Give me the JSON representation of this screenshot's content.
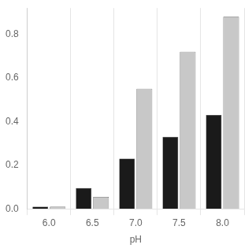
{
  "chart_data": {
    "type": "bar",
    "categories": [
      "6.0",
      "6.5",
      "7.0",
      "7.5",
      "8.0"
    ],
    "series": [
      {
        "color": "#1a1a1a",
        "values": [
          0.01,
          0.095,
          0.23,
          0.33,
          0.43
        ]
      },
      {
        "color": "#c8c8c8",
        "values": [
          0.01,
          0.055,
          0.55,
          0.72,
          0.88
        ]
      }
    ],
    "xlabel": "pH",
    "ylim": [
      0.0,
      0.92
    ],
    "yticks": [
      {
        "value": 0.0,
        "label": "0.0"
      },
      0.2,
      0.4,
      0.6,
      0.8
    ],
    "grid": "x"
  }
}
